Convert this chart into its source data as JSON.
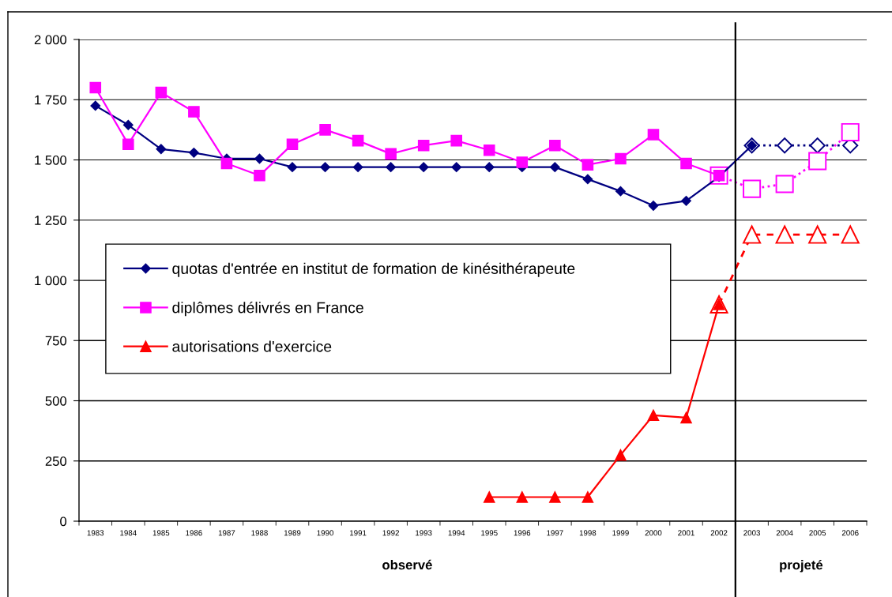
{
  "chart_data": {
    "type": "line",
    "series": [
      {
        "name": "quotas d'entrée en institut de formation de kinésithérapeute",
        "color": "#000080",
        "marker": "diamond",
        "line_style": "solid",
        "x": [
          1983,
          1984,
          1985,
          1986,
          1987,
          1988,
          1989,
          1990,
          1991,
          1992,
          1993,
          1994,
          1995,
          1996,
          1997,
          1998,
          1999,
          2000,
          2001,
          2002,
          2003
        ],
        "values": [
          1725,
          1645,
          1545,
          1530,
          1505,
          1505,
          1470,
          1470,
          1470,
          1470,
          1470,
          1470,
          1470,
          1470,
          1470,
          1420,
          1370,
          1310,
          1330,
          1430,
          1560
        ]
      },
      {
        "name": "diplômes délivrés en France",
        "color": "#ff00ff",
        "marker": "square",
        "line_style": "solid",
        "x": [
          1983,
          1984,
          1985,
          1986,
          1987,
          1988,
          1989,
          1990,
          1991,
          1992,
          1993,
          1994,
          1995,
          1996,
          1997,
          1998,
          1999,
          2000,
          2001,
          2002
        ],
        "values": [
          1800,
          1565,
          1780,
          1700,
          1485,
          1435,
          1565,
          1625,
          1580,
          1525,
          1560,
          1580,
          1540,
          1490,
          1560,
          1480,
          1505,
          1605,
          1485,
          1435
        ]
      },
      {
        "name": "autorisations d'exercice",
        "color": "#ff0000",
        "marker": "triangle",
        "line_style": "solid",
        "x": [
          1995,
          1996,
          1997,
          1998,
          1999,
          2000,
          2001,
          2002
        ],
        "values": [
          100,
          100,
          100,
          100,
          275,
          440,
          430,
          900
        ]
      },
      {
        "color": "#000080",
        "marker": "diamond",
        "line_style": "dotted",
        "x": [
          2003,
          2004,
          2005,
          2006
        ],
        "values": [
          1560,
          1560,
          1560,
          1560
        ]
      },
      {
        "color": "#ff00ff",
        "marker": "square",
        "line_style": "dotted",
        "x": [
          2002,
          2003,
          2004,
          2005,
          2006
        ],
        "values": [
          1435,
          1380,
          1400,
          1495,
          1615
        ]
      },
      {
        "color": "#ff0000",
        "marker": "triangle",
        "line_style": "dashed",
        "x": [
          2002,
          2003,
          2004,
          2005,
          2006
        ],
        "values": [
          900,
          1190,
          1190,
          1190,
          1190
        ]
      }
    ],
    "xlim": [
      1982.5,
      2006.5
    ],
    "xticks": [
      {
        "value": 1982.5,
        "label": null
      },
      1983,
      {
        "value": 1983.5,
        "label": null
      },
      1984,
      {
        "value": 1984.5,
        "label": null
      },
      1985,
      {
        "value": 1985.5,
        "label": null
      },
      1986,
      {
        "value": 1986.5,
        "label": null
      },
      1987,
      {
        "value": 1987.5,
        "label": null
      },
      1988,
      {
        "value": 1988.5,
        "label": null
      },
      1989,
      {
        "value": 1989.5,
        "label": null
      },
      1990,
      {
        "value": 1990.5,
        "label": null
      },
      1991,
      {
        "value": 1991.5,
        "label": null
      },
      1992,
      {
        "value": 1992.5,
        "label": null
      },
      1993,
      {
        "value": 1993.5,
        "label": null
      },
      1994,
      {
        "value": 1994.5,
        "label": null
      },
      1995,
      {
        "value": 1995.5,
        "label": null
      },
      1996,
      {
        "value": 1996.5,
        "label": null
      },
      1997,
      {
        "value": 1997.5,
        "label": null
      },
      1998,
      {
        "value": 1998.5,
        "label": null
      },
      1999,
      {
        "value": 1999.5,
        "label": null
      },
      2000,
      {
        "value": 2000.5,
        "label": null
      },
      2001,
      {
        "value": 2001.5,
        "label": null
      },
      2002,
      {
        "value": 2002.5,
        "label": null
      },
      2003,
      {
        "value": 2003.5,
        "label": null
      },
      2004,
      {
        "value": 2004.5,
        "label": null
      },
      2005,
      {
        "value": 2005.5,
        "label": null
      },
      2006,
      {
        "value": 2006.5,
        "label": null
      }
    ],
    "ylim": [
      0,
      2000
    ],
    "yticks": [
      0,
      250,
      500,
      750,
      {
        "value": 1000,
        "label": "1 000"
      },
      {
        "value": 1250,
        "label": "1 250"
      },
      {
        "value": 1500,
        "label": "1 500"
      },
      {
        "value": 1750,
        "label": "1 750"
      },
      {
        "value": 2000,
        "label": "2 000"
      }
    ],
    "ref_lines": [
      {
        "axis": "x",
        "value": 2002.5,
        "color": "#000000"
      }
    ],
    "annotations": [
      "observé",
      "projeté"
    ],
    "grid": "y",
    "legend": "center left"
  }
}
